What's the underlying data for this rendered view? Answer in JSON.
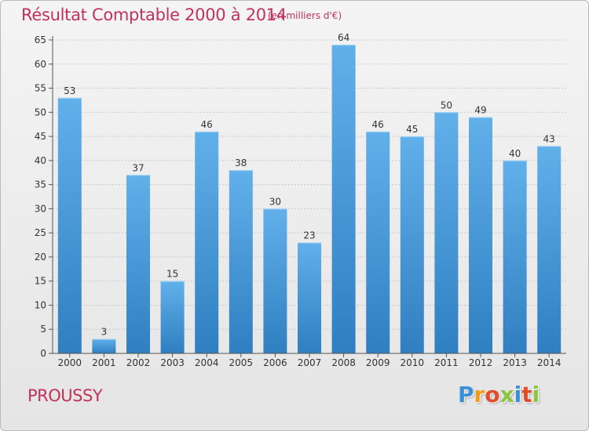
{
  "chart_data": {
    "type": "bar",
    "title": "Résultat Comptable 2000 à 2014",
    "subtitle": "(en milliers d'€)",
    "categories": [
      "2000",
      "2001",
      "2002",
      "2003",
      "2004",
      "2005",
      "2006",
      "2007",
      "2008",
      "2009",
      "2010",
      "2011",
      "2012",
      "2013",
      "2014"
    ],
    "values": [
      53,
      3,
      37,
      15,
      46,
      38,
      30,
      23,
      64,
      46,
      45,
      50,
      49,
      40,
      43
    ],
    "ylim": [
      0,
      65
    ],
    "yticks": [
      0,
      5,
      10,
      15,
      20,
      25,
      30,
      35,
      40,
      45,
      50,
      55,
      60,
      65
    ],
    "xlabel": "",
    "ylabel": "",
    "grid": true,
    "colors": {
      "bar_light": "#62b0ea",
      "bar_dark": "#2f7fc1",
      "accent": "#c1315e"
    }
  },
  "footer": {
    "town": "PROUSSY",
    "logo_letters": [
      "P",
      "r",
      "o",
      "x",
      "i",
      "t",
      "i"
    ],
    "logo_colors": [
      "#3a8fd6",
      "#f29a1b",
      "#e14d2a",
      "#8bc63f",
      "#3a8fd6",
      "#e14d2a",
      "#8bc63f"
    ]
  }
}
